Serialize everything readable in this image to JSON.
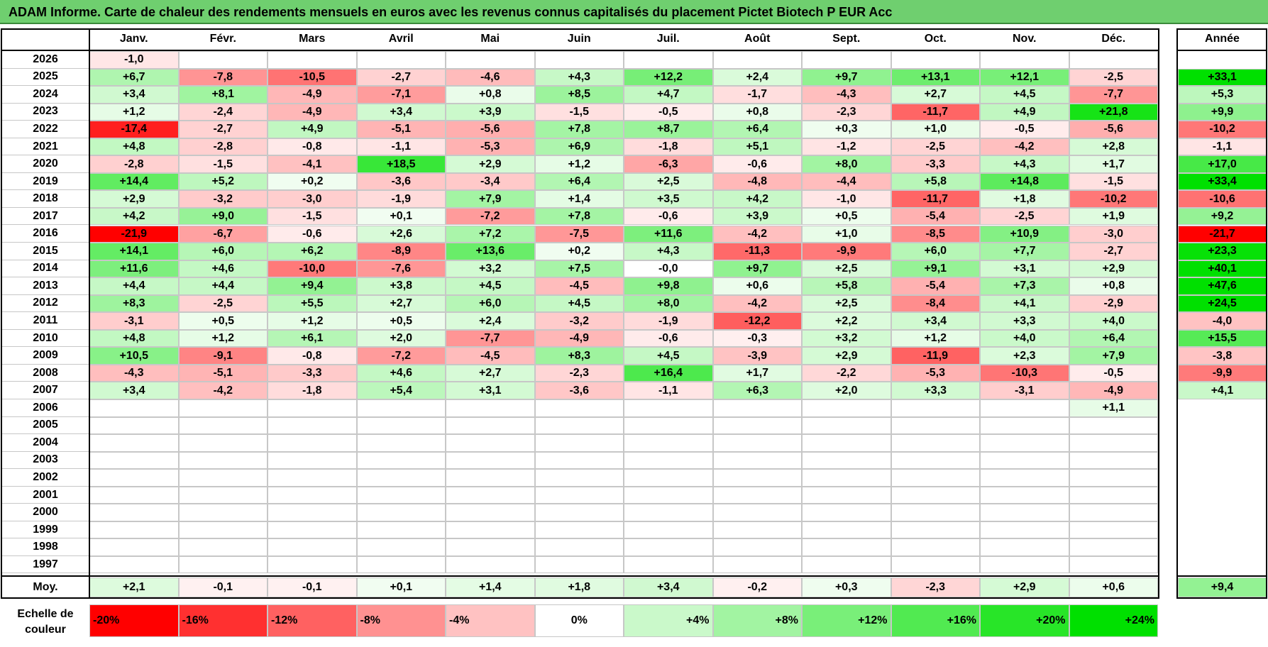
{
  "title": "ADAM Informe. Carte de chaleur des rendements mensuels en euros avec les revenus connus capitalisés du placement Pictet Biotech P EUR Acc",
  "colors": {
    "header_band": "#6fcf6f",
    "negative_max": "#ff0000",
    "positive_max": "#00e000",
    "neutral": "#ffffff"
  },
  "chart_data": {
    "type": "heatmap",
    "columns": [
      "Janv.",
      "Févr.",
      "Mars",
      "Avril",
      "Mai",
      "Juin",
      "Juil.",
      "Août",
      "Sept.",
      "Oct.",
      "Nov.",
      "Déc."
    ],
    "year_column_label": "Année",
    "rows": [
      {
        "year": "2026",
        "months": [
          "-1,0",
          "",
          "",
          "",
          "",
          "",
          "",
          "",
          "",
          "",
          "",
          ""
        ],
        "annual": ""
      },
      {
        "year": "2025",
        "months": [
          "+6,7",
          "-7,8",
          "-10,5",
          "-2,7",
          "-4,6",
          "+4,3",
          "+12,2",
          "+2,4",
          "+9,7",
          "+13,1",
          "+12,1",
          "-2,5"
        ],
        "annual": "+33,1"
      },
      {
        "year": "2024",
        "months": [
          "+3,4",
          "+8,1",
          "-4,9",
          "-7,1",
          "+0,8",
          "+8,5",
          "+4,7",
          "-1,7",
          "-4,3",
          "+2,7",
          "+4,5",
          "-7,7"
        ],
        "annual": "+5,3"
      },
      {
        "year": "2023",
        "months": [
          "+1,2",
          "-2,4",
          "-4,9",
          "+3,4",
          "+3,9",
          "-1,5",
          "-0,5",
          "+0,8",
          "-2,3",
          "-11,7",
          "+4,9",
          "+21,8"
        ],
        "annual": "+9,9"
      },
      {
        "year": "2022",
        "months": [
          "-17,4",
          "-2,7",
          "+4,9",
          "-5,1",
          "-5,6",
          "+7,8",
          "+8,7",
          "+6,4",
          "+0,3",
          "+1,0",
          "-0,5",
          "-5,6"
        ],
        "annual": "-10,2"
      },
      {
        "year": "2021",
        "months": [
          "+4,8",
          "-2,8",
          "-0,8",
          "-1,1",
          "-5,3",
          "+6,9",
          "-1,8",
          "+5,1",
          "-1,2",
          "-2,5",
          "-4,2",
          "+2,8"
        ],
        "annual": "-1,1"
      },
      {
        "year": "2020",
        "months": [
          "-2,8",
          "-1,5",
          "-4,1",
          "+18,5",
          "+2,9",
          "+1,2",
          "-6,3",
          "-0,6",
          "+8,0",
          "-3,3",
          "+4,3",
          "+1,7"
        ],
        "annual": "+17,0"
      },
      {
        "year": "2019",
        "months": [
          "+14,4",
          "+5,2",
          "+0,2",
          "-3,6",
          "-3,4",
          "+6,4",
          "+2,5",
          "-4,8",
          "-4,4",
          "+5,8",
          "+14,8",
          "-1,5"
        ],
        "annual": "+33,4"
      },
      {
        "year": "2018",
        "months": [
          "+2,9",
          "-3,2",
          "-3,0",
          "-1,9",
          "+7,9",
          "+1,4",
          "+3,5",
          "+4,2",
          "-1,0",
          "-11,7",
          "+1,8",
          "-10,2"
        ],
        "annual": "-10,6"
      },
      {
        "year": "2017",
        "months": [
          "+4,2",
          "+9,0",
          "-1,5",
          "+0,1",
          "-7,2",
          "+7,8",
          "-0,6",
          "+3,9",
          "+0,5",
          "-5,4",
          "-2,5",
          "+1,9"
        ],
        "annual": "+9,2"
      },
      {
        "year": "2016",
        "months": [
          "-21,9",
          "-6,7",
          "-0,6",
          "+2,6",
          "+7,2",
          "-7,5",
          "+11,6",
          "-4,2",
          "+1,0",
          "-8,5",
          "+10,9",
          "-3,0"
        ],
        "annual": "-21,7"
      },
      {
        "year": "2015",
        "months": [
          "+14,1",
          "+6,0",
          "+6,2",
          "-8,9",
          "+13,6",
          "+0,2",
          "+4,3",
          "-11,3",
          "-9,9",
          "+6,0",
          "+7,7",
          "-2,7"
        ],
        "annual": "+23,3"
      },
      {
        "year": "2014",
        "months": [
          "+11,6",
          "+4,6",
          "-10,0",
          "-7,6",
          "+3,2",
          "+7,5",
          "-0,0",
          "+9,7",
          "+2,5",
          "+9,1",
          "+3,1",
          "+2,9"
        ],
        "annual": "+40,1"
      },
      {
        "year": "2013",
        "months": [
          "+4,4",
          "+4,4",
          "+9,4",
          "+3,8",
          "+4,5",
          "-4,5",
          "+9,8",
          "+0,6",
          "+5,8",
          "-5,4",
          "+7,3",
          "+0,8"
        ],
        "annual": "+47,6"
      },
      {
        "year": "2012",
        "months": [
          "+8,3",
          "-2,5",
          "+5,5",
          "+2,7",
          "+6,0",
          "+4,5",
          "+8,0",
          "-4,2",
          "+2,5",
          "-8,4",
          "+4,1",
          "-2,9"
        ],
        "annual": "+24,5"
      },
      {
        "year": "2011",
        "months": [
          "-3,1",
          "+0,5",
          "+1,2",
          "+0,5",
          "+2,4",
          "-3,2",
          "-1,9",
          "-12,2",
          "+2,2",
          "+3,4",
          "+3,3",
          "+4,0"
        ],
        "annual": "-4,0"
      },
      {
        "year": "2010",
        "months": [
          "+4,8",
          "+1,2",
          "+6,1",
          "+2,0",
          "-7,7",
          "-4,9",
          "-0,6",
          "-0,3",
          "+3,2",
          "+1,2",
          "+4,0",
          "+6,4"
        ],
        "annual": "+15,5"
      },
      {
        "year": "2009",
        "months": [
          "+10,5",
          "-9,1",
          "-0,8",
          "-7,2",
          "-4,5",
          "+8,3",
          "+4,5",
          "-3,9",
          "+2,9",
          "-11,9",
          "+2,3",
          "+7,9"
        ],
        "annual": "-3,8"
      },
      {
        "year": "2008",
        "months": [
          "-4,3",
          "-5,1",
          "-3,3",
          "+4,6",
          "+2,7",
          "-2,3",
          "+16,4",
          "+1,7",
          "-2,2",
          "-5,3",
          "-10,3",
          "-0,5"
        ],
        "annual": "-9,9"
      },
      {
        "year": "2007",
        "months": [
          "+3,4",
          "-4,2",
          "-1,8",
          "+5,4",
          "+3,1",
          "-3,6",
          "-1,1",
          "+6,3",
          "+2,0",
          "+3,3",
          "-3,1",
          "-4,9"
        ],
        "annual": "+4,1"
      },
      {
        "year": "2006",
        "months": [
          "",
          "",
          "",
          "",
          "",
          "",
          "",
          "",
          "",
          "",
          "",
          "+1,1"
        ],
        "annual": ""
      },
      {
        "year": "2005",
        "months": [
          "",
          "",
          "",
          "",
          "",
          "",
          "",
          "",
          "",
          "",
          "",
          ""
        ],
        "annual": ""
      },
      {
        "year": "2004",
        "months": [
          "",
          "",
          "",
          "",
          "",
          "",
          "",
          "",
          "",
          "",
          "",
          ""
        ],
        "annual": ""
      },
      {
        "year": "2003",
        "months": [
          "",
          "",
          "",
          "",
          "",
          "",
          "",
          "",
          "",
          "",
          "",
          ""
        ],
        "annual": ""
      },
      {
        "year": "2002",
        "months": [
          "",
          "",
          "",
          "",
          "",
          "",
          "",
          "",
          "",
          "",
          "",
          ""
        ],
        "annual": ""
      },
      {
        "year": "2001",
        "months": [
          "",
          "",
          "",
          "",
          "",
          "",
          "",
          "",
          "",
          "",
          "",
          ""
        ],
        "annual": ""
      },
      {
        "year": "2000",
        "months": [
          "",
          "",
          "",
          "",
          "",
          "",
          "",
          "",
          "",
          "",
          "",
          ""
        ],
        "annual": ""
      },
      {
        "year": "1999",
        "months": [
          "",
          "",
          "",
          "",
          "",
          "",
          "",
          "",
          "",
          "",
          "",
          ""
        ],
        "annual": ""
      },
      {
        "year": "1998",
        "months": [
          "",
          "",
          "",
          "",
          "",
          "",
          "",
          "",
          "",
          "",
          "",
          ""
        ],
        "annual": ""
      },
      {
        "year": "1997",
        "months": [
          "",
          "",
          "",
          "",
          "",
          "",
          "",
          "",
          "",
          "",
          "",
          ""
        ],
        "annual": ""
      }
    ],
    "average": {
      "label": "Moy.",
      "months": [
        "+2,1",
        "-0,1",
        "-0,1",
        "+0,1",
        "+1,4",
        "+1,8",
        "+3,4",
        "-0,2",
        "+0,3",
        "-2,3",
        "+2,9",
        "+0,6"
      ],
      "annual": "+9,4"
    },
    "color_scale": {
      "label": "Echelle de couleur",
      "stops": [
        "-20%",
        "-16%",
        "-12%",
        "-8%",
        "-4%",
        "0%",
        "+4%",
        "+8%",
        "+12%",
        "+16%",
        "+20%",
        "+24%"
      ]
    }
  }
}
